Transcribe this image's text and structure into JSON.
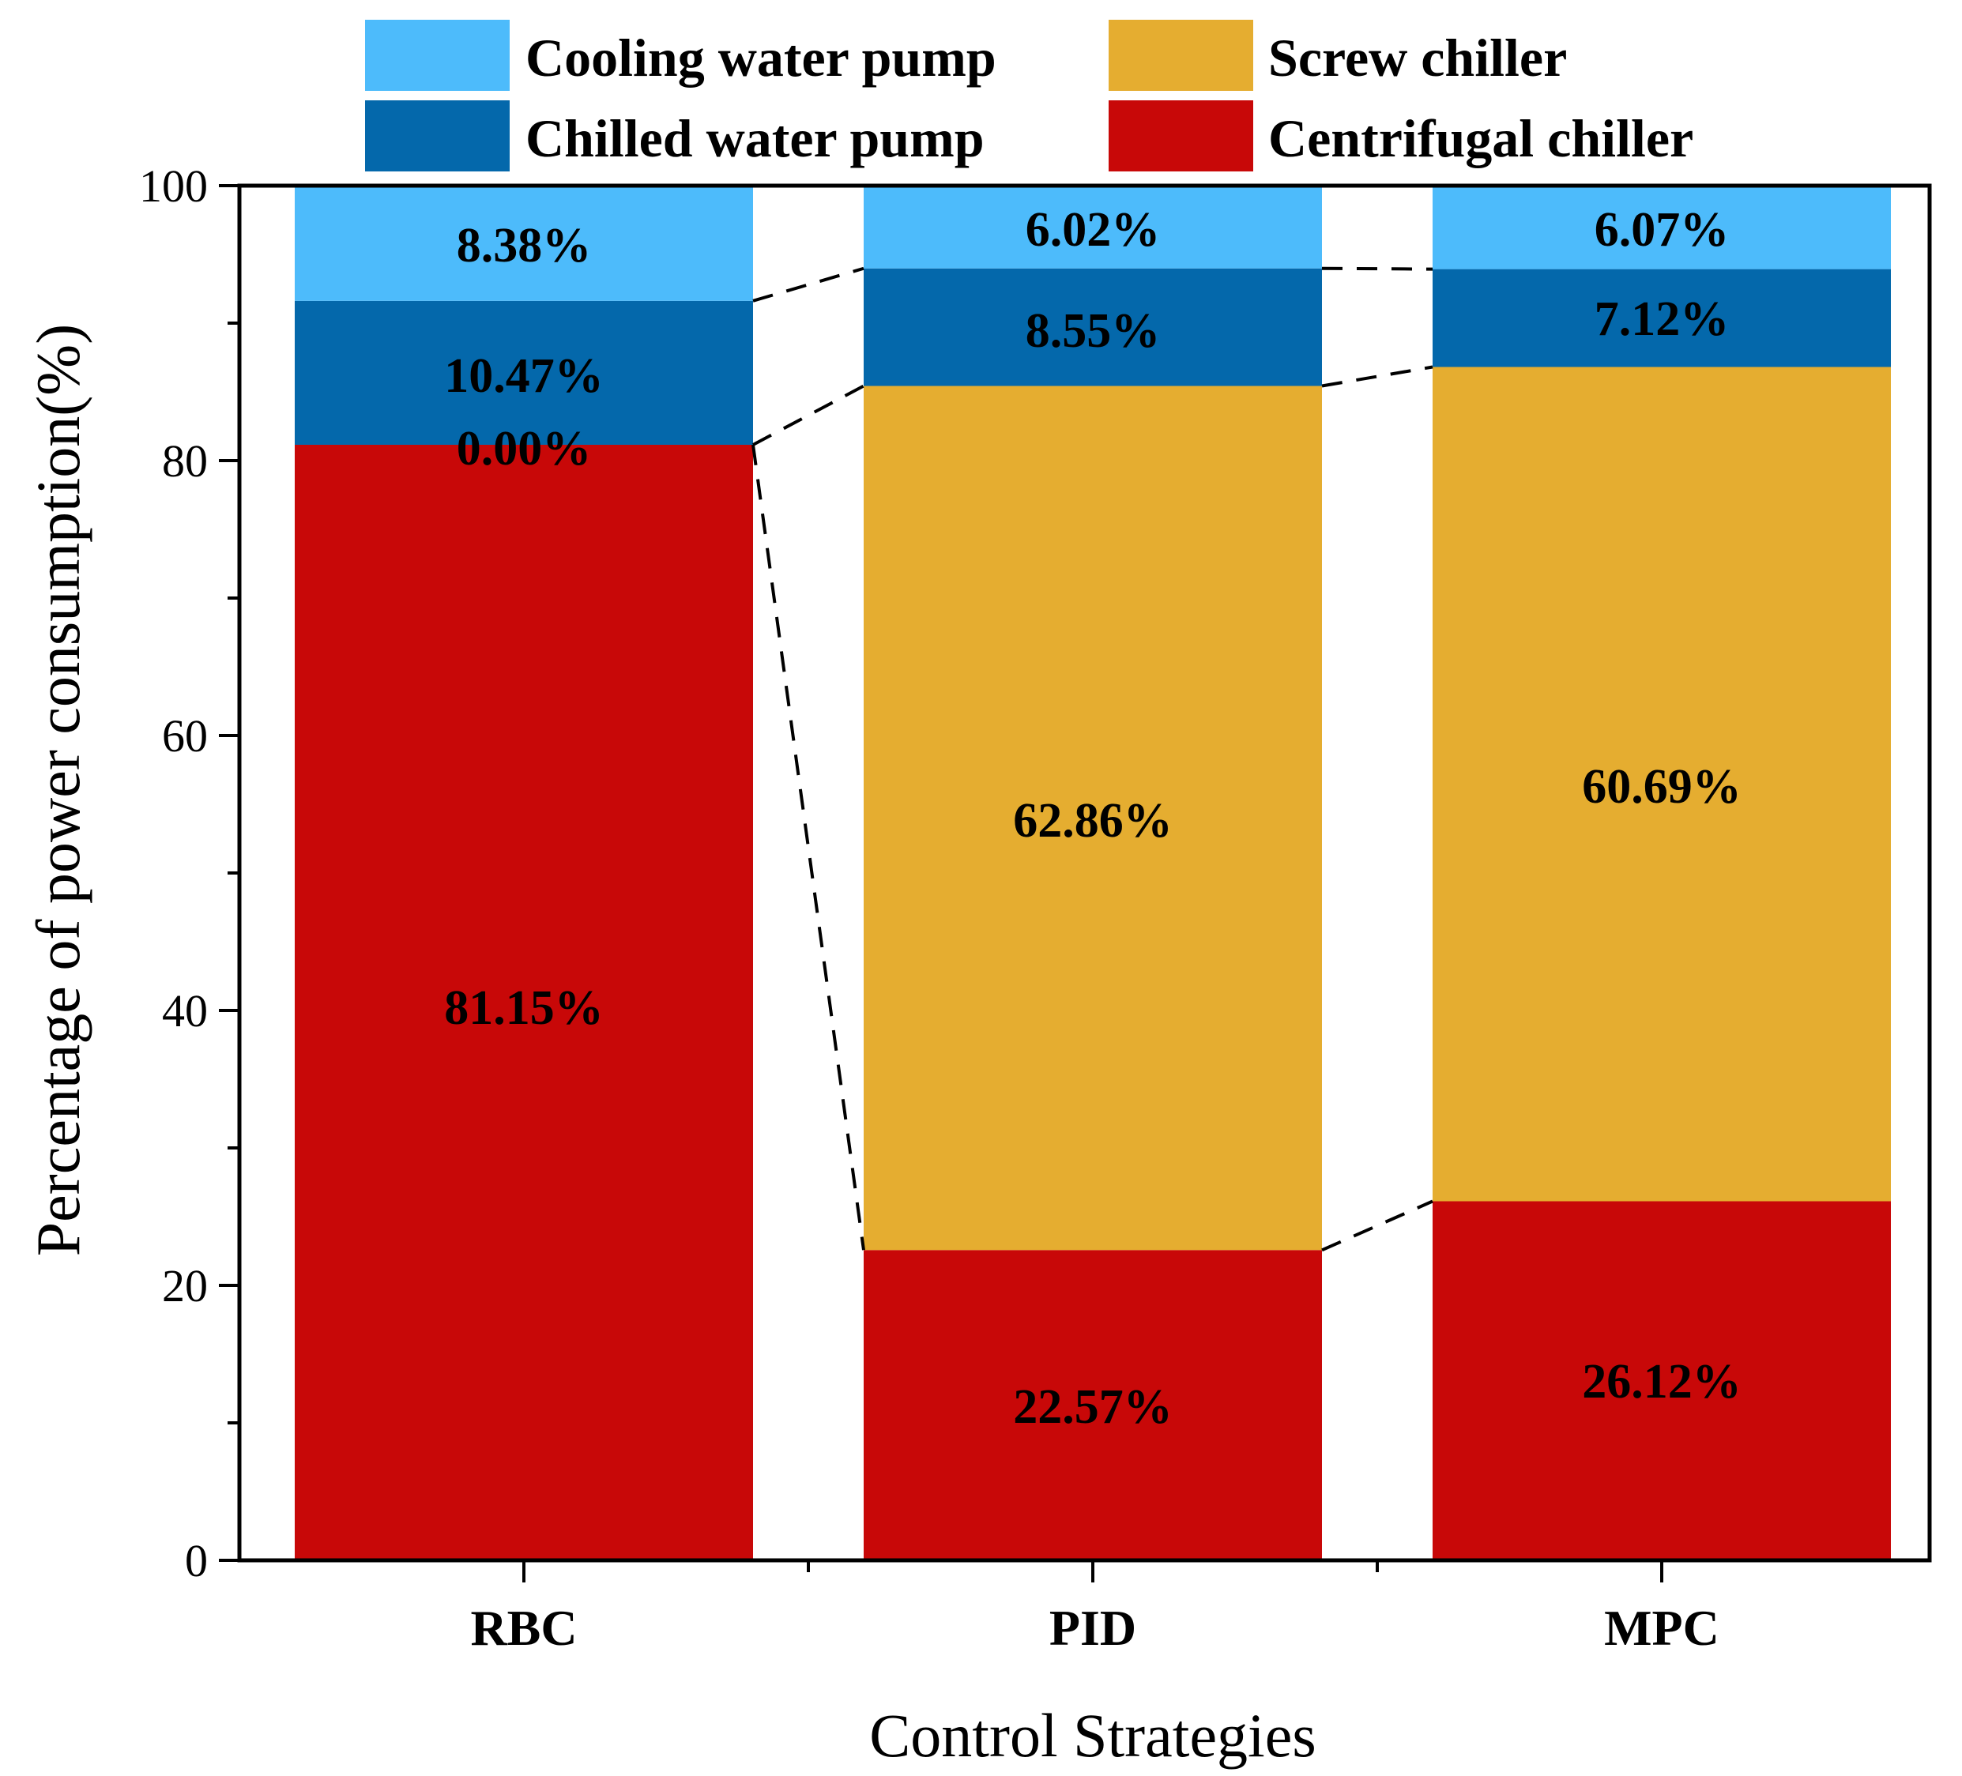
{
  "chart_data": {
    "type": "bar",
    "stacked": true,
    "categories": [
      "RBC",
      "PID",
      "MPC"
    ],
    "series": [
      {
        "name": "Centrifugal chiller",
        "values": [
          81.15,
          22.57,
          26.12
        ],
        "labels": [
          "81.15%",
          "22.57%",
          "26.12%"
        ],
        "color": "#c80808"
      },
      {
        "name": "Screw chiller",
        "values": [
          0.0,
          62.86,
          60.69
        ],
        "labels": [
          "0.00%",
          "62.86%",
          "60.69%"
        ],
        "color": "#e5ad30"
      },
      {
        "name": "Chilled water pump",
        "values": [
          10.47,
          8.55,
          7.12
        ],
        "labels": [
          "10.47%",
          "8.55%",
          "7.12%"
        ],
        "color": "#0468ab"
      },
      {
        "name": "Cooling water pump",
        "values": [
          8.38,
          6.02,
          6.07
        ],
        "labels": [
          "8.38%",
          "6.02%",
          "6.07%"
        ],
        "color": "#4dbbfb"
      }
    ],
    "legend": [
      {
        "name": "Cooling water pump",
        "color": "#4dbbfb"
      },
      {
        "name": "Screw chiller",
        "color": "#e5ad30"
      },
      {
        "name": "Chilled water pump",
        "color": "#0468ab"
      },
      {
        "name": "Centrifugal chiller",
        "color": "#c80808"
      }
    ],
    "legend_position": "top",
    "title": "",
    "xlabel": "Control Strategies",
    "ylabel": "Percentage of power consumption(%)",
    "ylim": [
      0,
      100
    ],
    "yticks": [
      "0",
      "20",
      "40",
      "60",
      "80",
      "100"
    ],
    "connector_lines": "dashed"
  }
}
